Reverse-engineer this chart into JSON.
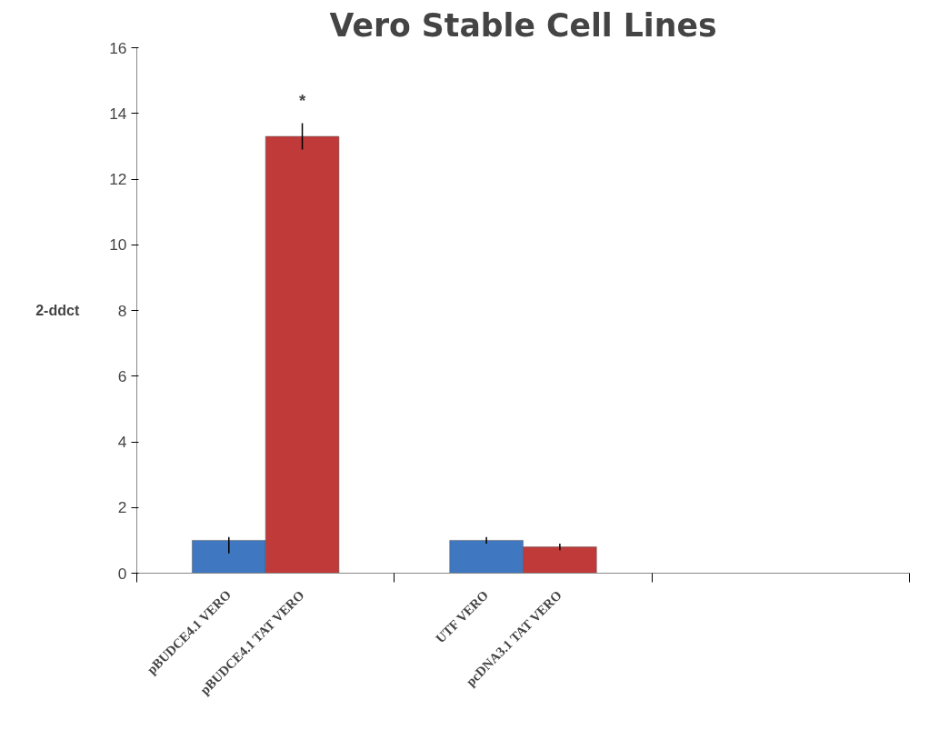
{
  "chart_data": {
    "type": "bar",
    "title": "Vero Stable Cell Lines",
    "ylabel": "2-ddct",
    "categories": [
      "pBUDCE4.1 VERO",
      "pBUDCE4.1 TAT VERO",
      "UTF VERO",
      "pcDNA3.1 TAT VERO",
      null,
      null
    ],
    "values": [
      1.0,
      13.3,
      1.0,
      0.8,
      null,
      null
    ],
    "colors": [
      "#3f78c0",
      "#c03a3a",
      "#3f78c0",
      "#c03a3a",
      "#3f78c0",
      "#c03a3a"
    ],
    "errors": [
      [
        0.6,
        1.1
      ],
      [
        12.9,
        13.7
      ],
      [
        0.9,
        1.1
      ],
      [
        0.7,
        0.9
      ],
      null,
      null
    ],
    "annotations": [
      "*"
    ],
    "ylim": [
      0,
      16
    ],
    "yticks": [
      0,
      2,
      4,
      6,
      8,
      10,
      12,
      14,
      16
    ],
    "grid": false
  }
}
